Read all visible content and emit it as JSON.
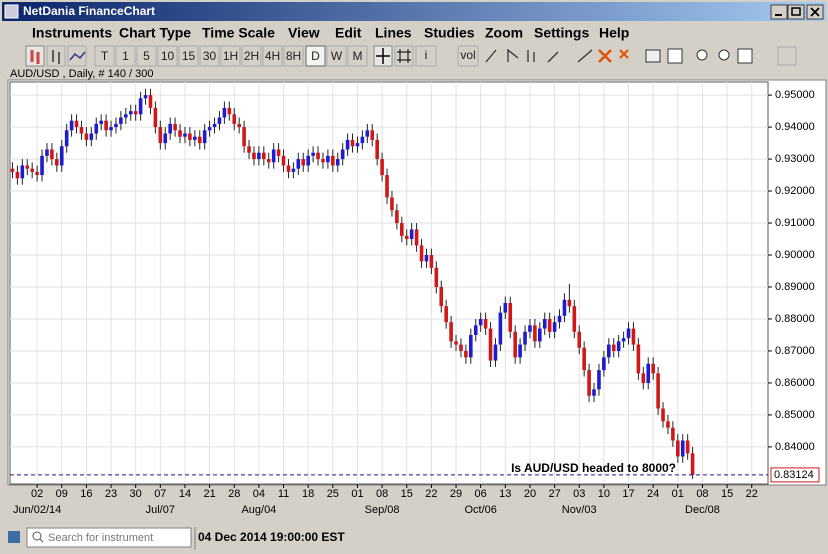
{
  "window": {
    "title": "NetDania FinanceChart"
  },
  "menu": [
    "Instruments",
    "Chart Type",
    "Time Scale",
    "View",
    "Edit",
    "Lines",
    "Studies",
    "Zoom",
    "Settings",
    "Help"
  ],
  "toolbar": [
    "T",
    "1",
    "5",
    "10",
    "15",
    "30",
    "1H",
    "2H",
    "4H",
    "8H",
    "D",
    "W",
    "M"
  ],
  "toolbar_extra": [
    "i",
    "vol"
  ],
  "chart_data": {
    "type": "candlestick",
    "subtitle": "AUD/USD , Daily, # 140 / 300",
    "annotation": "Is AUD/USD headed to 8000?",
    "up_color": "#1c1cd0",
    "down_color": "#d01818",
    "grid": true,
    "last_price": 0.83124,
    "ylim": [
      0.8284,
      0.9541
    ],
    "yticks": [
      {
        "value": 0.84,
        "label": "0.84000"
      },
      {
        "value": 0.85,
        "label": "0.85000"
      },
      {
        "value": 0.86,
        "label": "0.86000"
      },
      {
        "value": 0.87,
        "label": "0.87000"
      },
      {
        "value": 0.88,
        "label": "0.88000"
      },
      {
        "value": 0.89,
        "label": "0.89000"
      },
      {
        "value": 0.9,
        "label": "0.90000"
      },
      {
        "value": 0.91,
        "label": "0.91000"
      },
      {
        "value": 0.92,
        "label": "0.92000"
      },
      {
        "value": 0.93,
        "label": "0.93000"
      },
      {
        "value": 0.94,
        "label": "0.94000"
      },
      {
        "value": 0.95,
        "label": "0.95000"
      }
    ],
    "xlim": [
      -0.5,
      153.3
    ],
    "xticks": [
      {
        "value": 5,
        "label": "02"
      },
      {
        "value": 10,
        "label": "09"
      },
      {
        "value": 15,
        "label": "16"
      },
      {
        "value": 20,
        "label": "23"
      },
      {
        "value": 25,
        "label": "30"
      },
      {
        "value": 30,
        "label": "07"
      },
      {
        "value": 35,
        "label": "14"
      },
      {
        "value": 40,
        "label": "21"
      },
      {
        "value": 45,
        "label": "28"
      },
      {
        "value": 50,
        "label": "04"
      },
      {
        "value": 55,
        "label": "11"
      },
      {
        "value": 60,
        "label": "18"
      },
      {
        "value": 65,
        "label": "25"
      },
      {
        "value": 70,
        "label": "01"
      },
      {
        "value": 75,
        "label": "08"
      },
      {
        "value": 80,
        "label": "15"
      },
      {
        "value": 85,
        "label": "22"
      },
      {
        "value": 90,
        "label": "29"
      },
      {
        "value": 95,
        "label": "06"
      },
      {
        "value": 100,
        "label": "13"
      },
      {
        "value": 105,
        "label": "20"
      },
      {
        "value": 110,
        "label": "27"
      },
      {
        "value": 115,
        "label": "03"
      },
      {
        "value": 120,
        "label": "10"
      },
      {
        "value": 125,
        "label": "17"
      },
      {
        "value": 130,
        "label": "24"
      },
      {
        "value": 135,
        "label": "01"
      },
      {
        "value": 140,
        "label": "08"
      },
      {
        "value": 145,
        "label": "15"
      },
      {
        "value": 150,
        "label": "22"
      }
    ],
    "month_labels": [
      {
        "value": 5,
        "label": "Jun/02/14"
      },
      {
        "value": 30,
        "label": "Jul/07"
      },
      {
        "value": 50,
        "label": "Aug/04"
      },
      {
        "value": 75,
        "label": "Sep/08"
      },
      {
        "value": 95,
        "label": "Oct/06"
      },
      {
        "value": 115,
        "label": "Nov/03"
      },
      {
        "value": 140,
        "label": "Dec/08"
      }
    ],
    "candles": [
      [
        0.927,
        0.929,
        0.924,
        0.926
      ],
      [
        0.926,
        0.928,
        0.922,
        0.924
      ],
      [
        0.924,
        0.93,
        0.922,
        0.928
      ],
      [
        0.928,
        0.93,
        0.925,
        0.927
      ],
      [
        0.927,
        0.929,
        0.924,
        0.926
      ],
      [
        0.926,
        0.928,
        0.923,
        0.925
      ],
      [
        0.925,
        0.933,
        0.923,
        0.931
      ],
      [
        0.931,
        0.935,
        0.929,
        0.933
      ],
      [
        0.933,
        0.935,
        0.928,
        0.93
      ],
      [
        0.93,
        0.932,
        0.926,
        0.928
      ],
      [
        0.928,
        0.936,
        0.926,
        0.934
      ],
      [
        0.934,
        0.941,
        0.932,
        0.939
      ],
      [
        0.939,
        0.944,
        0.937,
        0.942
      ],
      [
        0.942,
        0.944,
        0.938,
        0.94
      ],
      [
        0.94,
        0.942,
        0.936,
        0.938
      ],
      [
        0.938,
        0.94,
        0.934,
        0.936
      ],
      [
        0.936,
        0.94,
        0.934,
        0.938
      ],
      [
        0.938,
        0.943,
        0.936,
        0.941
      ],
      [
        0.941,
        0.944,
        0.939,
        0.942
      ],
      [
        0.942,
        0.944,
        0.937,
        0.939
      ],
      [
        0.939,
        0.942,
        0.937,
        0.94
      ],
      [
        0.94,
        0.943,
        0.938,
        0.941
      ],
      [
        0.941,
        0.945,
        0.939,
        0.943
      ],
      [
        0.943,
        0.946,
        0.941,
        0.944
      ],
      [
        0.944,
        0.947,
        0.942,
        0.945
      ],
      [
        0.945,
        0.947,
        0.942,
        0.944
      ],
      [
        0.944,
        0.951,
        0.942,
        0.949
      ],
      [
        0.949,
        0.952,
        0.947,
        0.95
      ],
      [
        0.95,
        0.952,
        0.944,
        0.946
      ],
      [
        0.946,
        0.948,
        0.938,
        0.94
      ],
      [
        0.94,
        0.942,
        0.933,
        0.935
      ],
      [
        0.935,
        0.94,
        0.933,
        0.938
      ],
      [
        0.938,
        0.943,
        0.936,
        0.941
      ],
      [
        0.941,
        0.943,
        0.937,
        0.939
      ],
      [
        0.939,
        0.941,
        0.935,
        0.937
      ],
      [
        0.937,
        0.94,
        0.935,
        0.938
      ],
      [
        0.938,
        0.94,
        0.934,
        0.936
      ],
      [
        0.936,
        0.939,
        0.934,
        0.937
      ],
      [
        0.937,
        0.939,
        0.933,
        0.935
      ],
      [
        0.935,
        0.941,
        0.933,
        0.939
      ],
      [
        0.939,
        0.942,
        0.937,
        0.94
      ],
      [
        0.94,
        0.943,
        0.938,
        0.941
      ],
      [
        0.941,
        0.945,
        0.939,
        0.943
      ],
      [
        0.943,
        0.948,
        0.941,
        0.946
      ],
      [
        0.946,
        0.948,
        0.942,
        0.944
      ],
      [
        0.944,
        0.946,
        0.939,
        0.941
      ],
      [
        0.941,
        0.943,
        0.938,
        0.94
      ],
      [
        0.94,
        0.942,
        0.932,
        0.934
      ],
      [
        0.934,
        0.936,
        0.93,
        0.932
      ],
      [
        0.932,
        0.934,
        0.928,
        0.93
      ],
      [
        0.93,
        0.934,
        0.928,
        0.932
      ],
      [
        0.932,
        0.934,
        0.928,
        0.93
      ],
      [
        0.93,
        0.932,
        0.927,
        0.929
      ],
      [
        0.929,
        0.935,
        0.927,
        0.933
      ],
      [
        0.933,
        0.935,
        0.929,
        0.931
      ],
      [
        0.931,
        0.933,
        0.926,
        0.928
      ],
      [
        0.928,
        0.93,
        0.924,
        0.926
      ],
      [
        0.926,
        0.929,
        0.924,
        0.927
      ],
      [
        0.927,
        0.932,
        0.925,
        0.93
      ],
      [
        0.93,
        0.932,
        0.926,
        0.928
      ],
      [
        0.928,
        0.933,
        0.926,
        0.931
      ],
      [
        0.931,
        0.934,
        0.929,
        0.932
      ],
      [
        0.932,
        0.934,
        0.928,
        0.93
      ],
      [
        0.93,
        0.932,
        0.927,
        0.929
      ],
      [
        0.929,
        0.933,
        0.927,
        0.931
      ],
      [
        0.931,
        0.933,
        0.926,
        0.928
      ],
      [
        0.928,
        0.932,
        0.926,
        0.93
      ],
      [
        0.93,
        0.935,
        0.928,
        0.933
      ],
      [
        0.933,
        0.938,
        0.931,
        0.936
      ],
      [
        0.936,
        0.938,
        0.932,
        0.934
      ],
      [
        0.934,
        0.937,
        0.932,
        0.935
      ],
      [
        0.935,
        0.939,
        0.933,
        0.937
      ],
      [
        0.937,
        0.941,
        0.935,
        0.939
      ],
      [
        0.939,
        0.941,
        0.934,
        0.936
      ],
      [
        0.936,
        0.938,
        0.928,
        0.93
      ],
      [
        0.93,
        0.932,
        0.923,
        0.925
      ],
      [
        0.925,
        0.927,
        0.916,
        0.918
      ],
      [
        0.918,
        0.92,
        0.912,
        0.914
      ],
      [
        0.914,
        0.916,
        0.908,
        0.91
      ],
      [
        0.91,
        0.912,
        0.904,
        0.906
      ],
      [
        0.906,
        0.908,
        0.903,
        0.905
      ],
      [
        0.905,
        0.91,
        0.903,
        0.908
      ],
      [
        0.908,
        0.91,
        0.901,
        0.903
      ],
      [
        0.903,
        0.905,
        0.896,
        0.898
      ],
      [
        0.898,
        0.902,
        0.896,
        0.9
      ],
      [
        0.9,
        0.902,
        0.894,
        0.896
      ],
      [
        0.896,
        0.898,
        0.888,
        0.89
      ],
      [
        0.89,
        0.892,
        0.882,
        0.884
      ],
      [
        0.884,
        0.886,
        0.877,
        0.879
      ],
      [
        0.879,
        0.881,
        0.871,
        0.873
      ],
      [
        0.873,
        0.875,
        0.87,
        0.872
      ],
      [
        0.872,
        0.874,
        0.868,
        0.87
      ],
      [
        0.87,
        0.872,
        0.866,
        0.868
      ],
      [
        0.868,
        0.877,
        0.866,
        0.875
      ],
      [
        0.875,
        0.88,
        0.873,
        0.878
      ],
      [
        0.878,
        0.882,
        0.876,
        0.88
      ],
      [
        0.88,
        0.882,
        0.875,
        0.877
      ],
      [
        0.877,
        0.879,
        0.865,
        0.867
      ],
      [
        0.867,
        0.874,
        0.865,
        0.872
      ],
      [
        0.872,
        0.884,
        0.87,
        0.882
      ],
      [
        0.882,
        0.887,
        0.88,
        0.885
      ],
      [
        0.885,
        0.887,
        0.874,
        0.876
      ],
      [
        0.876,
        0.878,
        0.866,
        0.868
      ],
      [
        0.868,
        0.874,
        0.866,
        0.872
      ],
      [
        0.872,
        0.878,
        0.87,
        0.876
      ],
      [
        0.876,
        0.88,
        0.874,
        0.878
      ],
      [
        0.878,
        0.88,
        0.871,
        0.873
      ],
      [
        0.873,
        0.879,
        0.871,
        0.877
      ],
      [
        0.877,
        0.882,
        0.875,
        0.88
      ],
      [
        0.88,
        0.882,
        0.874,
        0.876
      ],
      [
        0.876,
        0.881,
        0.874,
        0.879
      ],
      [
        0.879,
        0.883,
        0.877,
        0.881
      ],
      [
        0.881,
        0.888,
        0.879,
        0.886
      ],
      [
        0.886,
        0.891,
        0.882,
        0.884
      ],
      [
        0.884,
        0.886,
        0.874,
        0.876
      ],
      [
        0.876,
        0.878,
        0.869,
        0.871
      ],
      [
        0.871,
        0.873,
        0.862,
        0.864
      ],
      [
        0.864,
        0.866,
        0.854,
        0.856
      ],
      [
        0.856,
        0.86,
        0.854,
        0.858
      ],
      [
        0.858,
        0.866,
        0.856,
        0.864
      ],
      [
        0.864,
        0.87,
        0.862,
        0.868
      ],
      [
        0.868,
        0.874,
        0.866,
        0.872
      ],
      [
        0.872,
        0.874,
        0.868,
        0.87
      ],
      [
        0.87,
        0.875,
        0.868,
        0.873
      ],
      [
        0.873,
        0.876,
        0.871,
        0.874
      ],
      [
        0.874,
        0.879,
        0.872,
        0.877
      ],
      [
        0.877,
        0.879,
        0.87,
        0.872
      ],
      [
        0.872,
        0.874,
        0.861,
        0.863
      ],
      [
        0.863,
        0.865,
        0.858,
        0.86
      ],
      [
        0.86,
        0.868,
        0.858,
        0.866
      ],
      [
        0.866,
        0.868,
        0.861,
        0.863
      ],
      [
        0.863,
        0.865,
        0.85,
        0.852
      ],
      [
        0.852,
        0.854,
        0.846,
        0.848
      ],
      [
        0.848,
        0.85,
        0.844,
        0.846
      ],
      [
        0.846,
        0.848,
        0.84,
        0.842
      ],
      [
        0.842,
        0.844,
        0.835,
        0.837
      ],
      [
        0.837,
        0.844,
        0.835,
        0.842
      ],
      [
        0.842,
        0.844,
        0.836,
        0.838
      ],
      [
        0.838,
        0.84,
        0.83,
        0.83124
      ]
    ]
  },
  "status": {
    "search_placeholder": "Search for instrument",
    "timestamp": "04 Dec 2014 19:00:00 EST"
  }
}
